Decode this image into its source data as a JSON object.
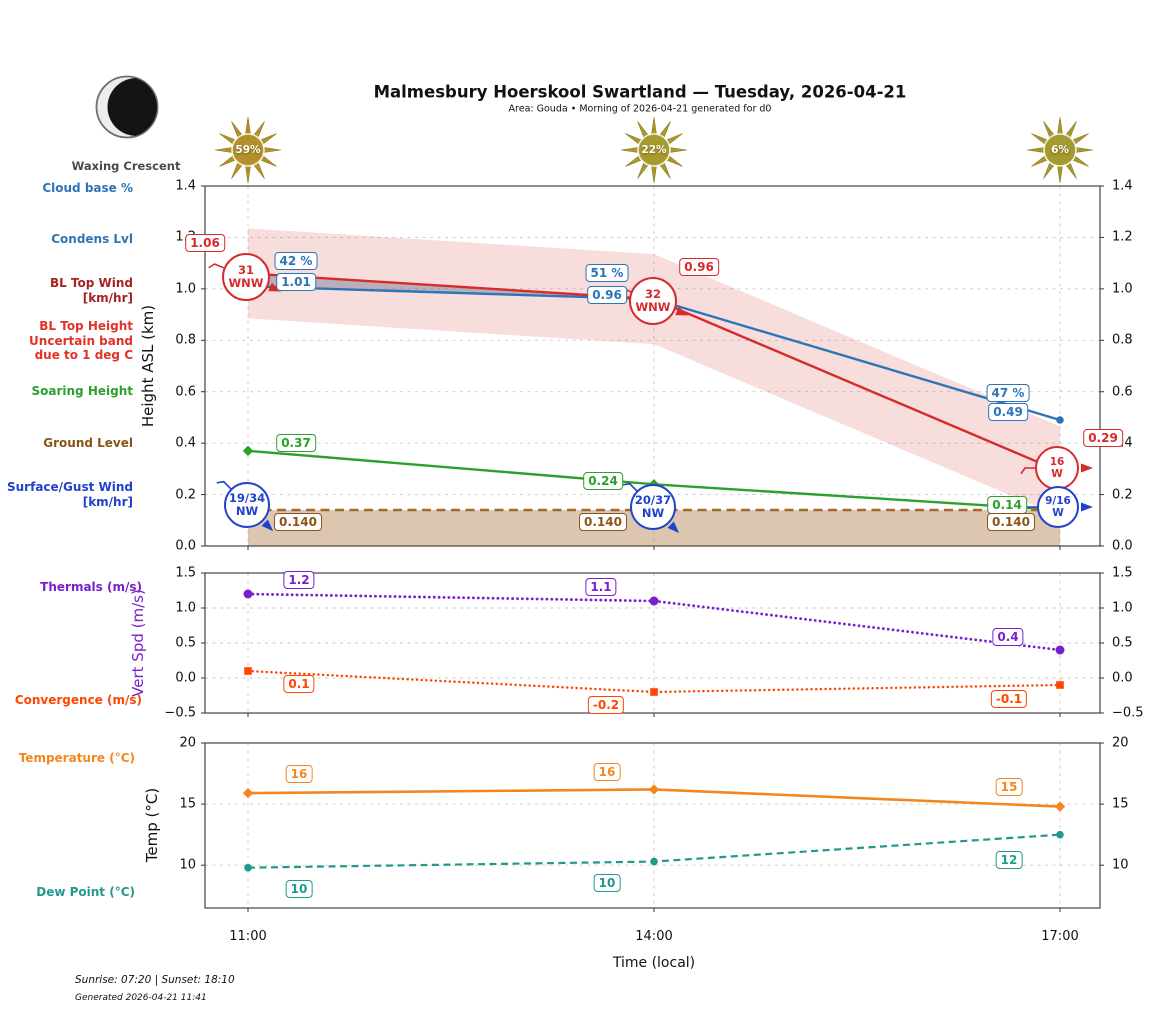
{
  "header": {
    "title": "Malmesbury Hoerskool Swartland — Tuesday, 2026-04-21",
    "subtitle": "Area: Gouda • Morning of 2026-04-21 generated for d0",
    "moon_phase": "Waxing Crescent"
  },
  "suns": [
    {
      "time": "11:00",
      "percent": "59%",
      "color": "#b4902c"
    },
    {
      "time": "14:00",
      "percent": "22%",
      "color": "#a89b2e"
    },
    {
      "time": "17:00",
      "percent": "6%",
      "color": "#a49a30"
    }
  ],
  "left_labels": {
    "cloud_base": {
      "lines": [
        "Cloud base %"
      ],
      "color": "steel_blue"
    },
    "condens": {
      "lines": [
        "Condens Lvl"
      ],
      "color": "steel_blue"
    },
    "bl_top_wind": {
      "lines": [
        "BL Top Wind",
        "[km/hr]"
      ],
      "color": "dark_red"
    },
    "bl_top_height": {
      "lines": [
        "BL Top Height",
        "Uncertain band",
        "due to 1 deg C"
      ],
      "color": "bright_red"
    },
    "soaring": {
      "lines": [
        "Soaring Height"
      ],
      "color": "green"
    },
    "ground": {
      "lines": [
        "Ground Level"
      ],
      "color": "brown_text"
    },
    "surface_wind": {
      "lines": [
        "Surface/Gust Wind",
        "[km/hr]"
      ],
      "color": "royal_blue"
    },
    "thermals": {
      "lines": [
        "Thermals (m/s)"
      ],
      "color": "purple"
    },
    "convergence": {
      "lines": [
        "Convergence (m/s)"
      ],
      "color": "orangered"
    },
    "temperature": {
      "lines": [
        "Temperature (°C)"
      ],
      "color": "orange"
    },
    "dew_point": {
      "lines": [
        "Dew Point (°C)"
      ],
      "color": "teal"
    }
  },
  "colors": {
    "steel_blue": "#2d75b6",
    "red": "#d62b2b",
    "dark_red": "#a82222",
    "bright_red": "#e03228",
    "green": "#2ca02c",
    "brown": "#a5682d",
    "brown_text": "#8a5419",
    "royal_blue": "#2143cc",
    "purple": "#7a1fd0",
    "orangered": "#ff4500",
    "orange": "#f5861f",
    "teal": "#21998c",
    "band_pink": "rgba(214,43,43,0.16)",
    "ground_fill": "rgba(165,104,45,0.38)",
    "cloud_gray": "rgba(110,120,140,0.45)",
    "grid": "#c9c9c9",
    "spine": "#333333"
  },
  "chart_data": [
    {
      "type": "line",
      "panel": "height",
      "ylabel": "Height ASL (km)",
      "x_categories": [
        "11:00",
        "14:00",
        "17:00"
      ],
      "ylim": [
        0.0,
        1.4
      ],
      "yticks": [
        0.0,
        0.2,
        0.4,
        0.6,
        0.8,
        1.0,
        1.2,
        1.4
      ],
      "ytick_labels": [
        "0.0",
        "0.2",
        "0.4",
        "0.6",
        "0.8",
        "1.0",
        "1.2",
        "1.4"
      ],
      "series": [
        {
          "key": "condens",
          "name": "Condens Lvl / Cloud base",
          "color_key": "steel_blue",
          "values": [
            1.01,
            0.96,
            0.49
          ],
          "labels": [
            "1.01",
            "0.96",
            "0.49"
          ],
          "pct_labels": [
            "42 %",
            "51 %",
            "47 %"
          ]
        },
        {
          "key": "bl",
          "name": "BL Top Height",
          "color_key": "red",
          "values": [
            1.06,
            0.96,
            0.29
          ],
          "labels": [
            "1.06",
            "0.96",
            "0.29"
          ],
          "band_halfwidth_km": 0.175
        },
        {
          "key": "soaring",
          "name": "Soaring Height",
          "color_key": "green",
          "values": [
            0.37,
            0.24,
            0.14
          ],
          "labels": [
            "0.37",
            "0.24",
            "0.14"
          ]
        },
        {
          "key": "ground",
          "name": "Ground Level",
          "color_key": "brown",
          "values": [
            0.14,
            0.14,
            0.14
          ],
          "labels": [
            "0.140",
            "0.140",
            "0.140"
          ]
        }
      ],
      "wind": {
        "bl_top": [
          {
            "speed": "31",
            "dir": "WNW"
          },
          {
            "speed": "32",
            "dir": "WNW"
          },
          {
            "speed": "16",
            "dir": "W"
          }
        ],
        "surface": [
          {
            "speed": "19/34",
            "dir": "NW"
          },
          {
            "speed": "20/37",
            "dir": "NW"
          },
          {
            "speed": "9/16",
            "dir": "W"
          }
        ]
      }
    },
    {
      "type": "line",
      "panel": "vertspd",
      "ylabel": "Vert Spd (m/s)",
      "ylim": [
        -0.5,
        1.5
      ],
      "yticks": [
        -0.5,
        0.0,
        0.5,
        1.0,
        1.5
      ],
      "ytick_labels": [
        "−0.5",
        "0.0",
        "0.5",
        "1.0",
        "1.5"
      ],
      "series": [
        {
          "key": "thermals",
          "name": "Thermals",
          "color_key": "purple",
          "values": [
            1.2,
            1.1,
            0.4
          ],
          "labels": [
            "1.2",
            "1.1",
            "0.4"
          ]
        },
        {
          "key": "convergence",
          "name": "Convergence",
          "color_key": "orangered",
          "values": [
            0.1,
            -0.2,
            -0.1
          ],
          "labels": [
            "0.1",
            "-0.2",
            "-0.1"
          ]
        }
      ]
    },
    {
      "type": "line",
      "panel": "temp",
      "ylabel": "Temp (°C)",
      "xlabel": "Time (local)",
      "ylim": [
        6.5,
        20
      ],
      "yticks": [
        10,
        15,
        20
      ],
      "ytick_labels": [
        "10",
        "15",
        "20"
      ],
      "series": [
        {
          "key": "temperature",
          "name": "Temperature",
          "color_key": "orange",
          "values": [
            15.9,
            16.2,
            14.8
          ],
          "labels": [
            "16",
            "16",
            "15"
          ]
        },
        {
          "key": "dew",
          "name": "Dew Point",
          "color_key": "teal",
          "values": [
            9.8,
            10.3,
            12.5
          ],
          "labels": [
            "10",
            "10",
            "12"
          ]
        }
      ]
    }
  ],
  "footer": {
    "sunrise_sunset": "Sunrise: 07:20 | Sunset: 18:10",
    "generated": "Generated 2026-04-21 11:41"
  }
}
